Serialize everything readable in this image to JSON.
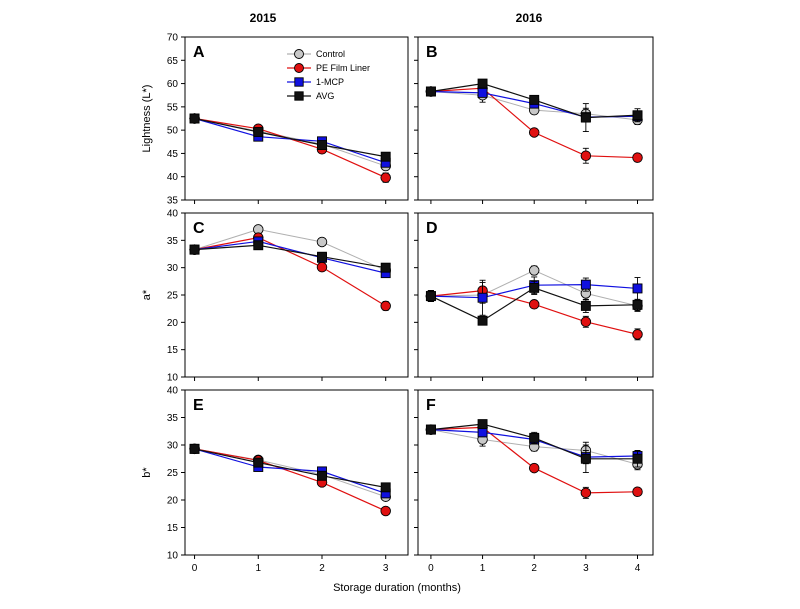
{
  "figure": {
    "years": [
      "2015",
      "2016"
    ],
    "xlabel": "Storage duration (months)",
    "legend": [
      {
        "name": "Control",
        "marker": "circle",
        "fill": "#c8c8c8",
        "line": "#b0b0b0"
      },
      {
        "name": "PE Film Liner",
        "marker": "circle",
        "fill": "#e01010",
        "line": "#e01010"
      },
      {
        "name": "1-MCP",
        "marker": "square",
        "fill": "#1010e0",
        "line": "#1010e0"
      },
      {
        "name": "AVG",
        "marker": "square",
        "fill": "#111111",
        "line": "#111111"
      }
    ]
  },
  "chart_data": [
    {
      "type": "line",
      "panel": "A",
      "year": "2015",
      "ylabel": "Lightness (L*)",
      "ylim": [
        35,
        70
      ],
      "yticks": [
        35,
        40,
        45,
        50,
        55,
        60,
        65,
        70
      ],
      "x": [
        0,
        1,
        2,
        3
      ],
      "xticks": [
        0,
        1,
        2,
        3
      ],
      "series": [
        {
          "name": "Control",
          "values": [
            52.5,
            49.8,
            47.0,
            42.3
          ],
          "err": [
            0.5,
            0.5,
            0.5,
            0.8
          ]
        },
        {
          "name": "PE Film Liner",
          "values": [
            52.5,
            50.3,
            45.9,
            39.8
          ],
          "err": [
            0.5,
            0.5,
            0.5,
            1.0
          ]
        },
        {
          "name": "1-MCP",
          "values": [
            52.5,
            48.6,
            47.6,
            43.0
          ],
          "err": [
            0.5,
            0.5,
            0.5,
            0.8
          ]
        },
        {
          "name": "AVG",
          "values": [
            52.5,
            49.6,
            46.8,
            44.3
          ],
          "err": [
            0.5,
            0.5,
            0.5,
            0.6
          ]
        }
      ]
    },
    {
      "type": "line",
      "panel": "B",
      "year": "2016",
      "ylabel": "",
      "ylim": [
        35,
        70
      ],
      "yticks": [
        35,
        40,
        45,
        50,
        55,
        60,
        65,
        70
      ],
      "x": [
        0,
        1,
        2,
        3,
        4
      ],
      "xticks": [
        0,
        1,
        2,
        3,
        4
      ],
      "series": [
        {
          "name": "Control",
          "values": [
            58.3,
            57.5,
            54.3,
            53.5,
            52.2
          ],
          "err": [
            0.5,
            1.5,
            0.8,
            1.2,
            1.0
          ]
        },
        {
          "name": "PE Film Liner",
          "values": [
            58.3,
            59.0,
            49.5,
            44.5,
            44.1
          ],
          "err": [
            0.5,
            0.8,
            0.5,
            1.6,
            0.5
          ]
        },
        {
          "name": "1-MCP",
          "values": [
            58.3,
            58.0,
            55.7,
            52.8,
            53.0
          ],
          "err": [
            0.5,
            0.8,
            0.8,
            0.8,
            1.0
          ]
        },
        {
          "name": "AVG",
          "values": [
            58.3,
            60.0,
            56.5,
            52.7,
            53.2
          ],
          "err": [
            0.5,
            0.6,
            0.6,
            3.0,
            1.4
          ]
        }
      ]
    },
    {
      "type": "line",
      "panel": "C",
      "year": "2015",
      "ylabel": "a*",
      "ylim": [
        10,
        40
      ],
      "yticks": [
        10,
        15,
        20,
        25,
        30,
        35,
        40
      ],
      "x": [
        0,
        1,
        2,
        3
      ],
      "xticks": [
        0,
        1,
        2,
        3
      ],
      "series": [
        {
          "name": "Control",
          "values": [
            33.3,
            37.0,
            34.7,
            29.5
          ],
          "err": [
            0.5,
            0.5,
            0.5,
            0.6
          ]
        },
        {
          "name": "PE Film Liner",
          "values": [
            33.3,
            35.5,
            30.1,
            23.0
          ],
          "err": [
            0.5,
            0.6,
            0.5,
            0.8
          ]
        },
        {
          "name": "1-MCP",
          "values": [
            33.3,
            34.8,
            31.8,
            29.0
          ],
          "err": [
            0.5,
            0.6,
            0.5,
            0.6
          ]
        },
        {
          "name": "AVG",
          "values": [
            33.3,
            34.1,
            32.0,
            30.0
          ],
          "err": [
            0.5,
            0.5,
            0.5,
            0.5
          ]
        }
      ]
    },
    {
      "type": "line",
      "panel": "D",
      "year": "2016",
      "ylabel": "",
      "ylim": [
        10,
        40
      ],
      "yticks": [
        10,
        15,
        20,
        25,
        30,
        35,
        40
      ],
      "x": [
        0,
        1,
        2,
        3,
        4
      ],
      "xticks": [
        0,
        1,
        2,
        3,
        4
      ],
      "series": [
        {
          "name": "Control",
          "values": [
            24.8,
            25.0,
            29.5,
            25.3,
            23.0
          ],
          "err": [
            1.0,
            1.5,
            0.8,
            1.2,
            1.0
          ]
        },
        {
          "name": "PE Film Liner",
          "values": [
            24.8,
            25.8,
            23.3,
            20.1,
            17.8
          ],
          "err": [
            1.0,
            1.5,
            0.6,
            1.0,
            1.0
          ]
        },
        {
          "name": "1-MCP",
          "values": [
            24.8,
            24.5,
            26.8,
            26.9,
            26.2
          ],
          "err": [
            1.0,
            3.2,
            1.5,
            1.2,
            2.0
          ]
        },
        {
          "name": "AVG",
          "values": [
            24.8,
            20.3,
            26.3,
            23.0,
            23.2
          ],
          "err": [
            1.0,
            0.6,
            1.2,
            1.2,
            1.0
          ]
        }
      ]
    },
    {
      "type": "line",
      "panel": "E",
      "year": "2015",
      "ylabel": "b*",
      "ylim": [
        10,
        40
      ],
      "yticks": [
        10,
        15,
        20,
        25,
        30,
        35,
        40
      ],
      "x": [
        0,
        1,
        2,
        3
      ],
      "xticks": [
        0,
        1,
        2,
        3
      ],
      "series": [
        {
          "name": "Control",
          "values": [
            29.3,
            27.3,
            24.6,
            20.6
          ],
          "err": [
            0.5,
            0.5,
            0.5,
            0.6
          ]
        },
        {
          "name": "PE Film Liner",
          "values": [
            29.3,
            27.2,
            23.2,
            18.0
          ],
          "err": [
            0.5,
            0.5,
            0.5,
            0.6
          ]
        },
        {
          "name": "1-MCP",
          "values": [
            29.3,
            26.0,
            25.2,
            21.2
          ],
          "err": [
            0.5,
            0.5,
            0.5,
            0.6
          ]
        },
        {
          "name": "AVG",
          "values": [
            29.3,
            26.8,
            24.4,
            22.3
          ],
          "err": [
            0.5,
            0.5,
            0.5,
            0.6
          ]
        }
      ]
    },
    {
      "type": "line",
      "panel": "F",
      "year": "2016",
      "ylabel": "",
      "ylim": [
        10,
        40
      ],
      "yticks": [
        10,
        15,
        20,
        25,
        30,
        35,
        40
      ],
      "x": [
        0,
        1,
        2,
        3,
        4
      ],
      "xticks": [
        0,
        1,
        2,
        3,
        4
      ],
      "series": [
        {
          "name": "Control",
          "values": [
            32.8,
            31.0,
            29.7,
            29.0,
            26.5
          ],
          "err": [
            0.5,
            1.2,
            0.8,
            1.5,
            1.0
          ]
        },
        {
          "name": "PE Film Liner",
          "values": [
            32.8,
            33.2,
            25.8,
            21.3,
            21.5
          ],
          "err": [
            0.5,
            0.8,
            0.6,
            1.0,
            0.5
          ]
        },
        {
          "name": "1-MCP",
          "values": [
            32.8,
            32.3,
            31.0,
            27.8,
            28.0
          ],
          "err": [
            0.5,
            0.8,
            0.8,
            1.2,
            1.0
          ]
        },
        {
          "name": "AVG",
          "values": [
            32.8,
            33.8,
            31.3,
            27.5,
            27.5
          ],
          "err": [
            0.5,
            0.6,
            1.0,
            2.5,
            1.5
          ]
        }
      ]
    }
  ]
}
